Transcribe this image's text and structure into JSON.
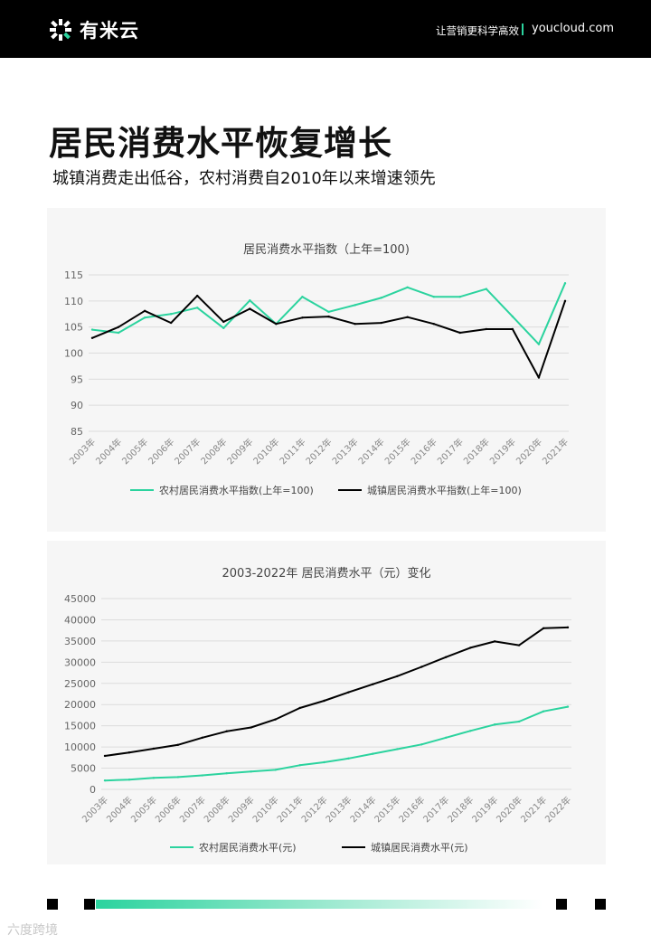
{
  "header": {
    "logo_text": "有米云",
    "logo_icon": "asterisk-logo-icon",
    "tagline": "让营销更科学高效",
    "site": "youcloud.com",
    "accent": "#2bd39e"
  },
  "page": {
    "title": "居民消费水平恢复增长",
    "subtitle": "城镇消费走出低谷，农村消费自2010年以来增速领先",
    "watermark": "六度跨境"
  },
  "chart_data": [
    {
      "type": "line",
      "title": "居民消费水平指数（上年=100)",
      "x": [
        "2003年",
        "2004年",
        "2005年",
        "2006年",
        "2007年",
        "2008年",
        "2009年",
        "2010年",
        "2011年",
        "2012年",
        "2013年",
        "2014年",
        "2015年",
        "2016年",
        "2017年",
        "2018年",
        "2019年",
        "2020年",
        "2021年"
      ],
      "ylim": [
        85,
        115
      ],
      "yticks": [
        115,
        110,
        105,
        100,
        95,
        90,
        85
      ],
      "grid": true,
      "legend": "bottom",
      "series": [
        {
          "name": "农村居民消费水平指数(上年=100)",
          "color": "#2bd39e",
          "values": [
            104.5,
            103.9,
            106.8,
            107.5,
            108.7,
            104.8,
            110.1,
            105.6,
            110.8,
            107.9,
            109.2,
            110.6,
            112.6,
            110.8,
            110.8,
            112.3,
            107.0,
            101.7,
            113.4
          ]
        },
        {
          "name": "城镇居民消费水平指数(上年=100)",
          "color": "#000000",
          "values": [
            102.9,
            105.0,
            108.1,
            105.8,
            111.0,
            106.0,
            108.5,
            105.6,
            106.8,
            107.0,
            105.6,
            105.8,
            106.9,
            105.6,
            103.9,
            104.6,
            104.6,
            95.3,
            110.0
          ]
        }
      ]
    },
    {
      "type": "line",
      "title": "2003-2022年 居民消费水平（元）变化",
      "x": [
        "2003年",
        "2004年",
        "2005年",
        "2006年",
        "2007年",
        "2008年",
        "2009年",
        "2010年",
        "2011年",
        "2012年",
        "2013年",
        "2014年",
        "2015年",
        "2016年",
        "2017年",
        "2018年",
        "2019年",
        "2020年",
        "2021年",
        "2022年"
      ],
      "ylim": [
        0,
        45000
      ],
      "yticks": [
        45000,
        40000,
        35000,
        30000,
        25000,
        20000,
        15000,
        10000,
        5000,
        0
      ],
      "grid": true,
      "legend": "bottom",
      "series": [
        {
          "name": "农村居民消费水平(元)",
          "color": "#2bd39e",
          "values": [
            2100,
            2300,
            2700,
            2900,
            3300,
            3800,
            4200,
            4600,
            5700,
            6400,
            7300,
            8400,
            9500,
            10600,
            12200,
            13800,
            15300,
            16000,
            18400,
            19500
          ]
        },
        {
          "name": "城镇居民消费水平(元)",
          "color": "#000000",
          "values": [
            7900,
            8700,
            9600,
            10500,
            12200,
            13700,
            14600,
            16500,
            19200,
            20900,
            22900,
            24800,
            26700,
            28900,
            31200,
            33400,
            34900,
            34000,
            38000,
            38200
          ]
        }
      ]
    }
  ]
}
